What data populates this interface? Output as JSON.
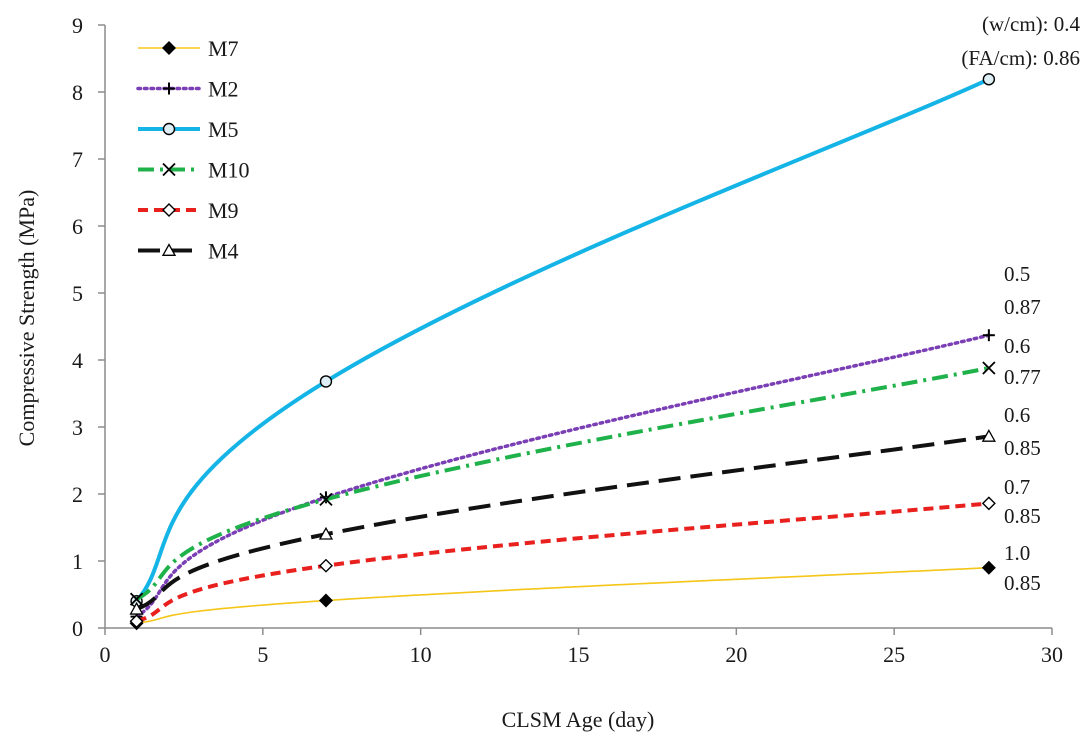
{
  "chart_data": {
    "type": "line",
    "title": "",
    "xlabel": "CLSM Age (day)",
    "ylabel": "Compressive Strength (MPa)",
    "xlim": [
      0,
      30
    ],
    "ylim": [
      0,
      9
    ],
    "xticks": [
      0,
      5,
      10,
      15,
      20,
      25,
      30
    ],
    "yticks": [
      0,
      1,
      2,
      3,
      4,
      5,
      6,
      7,
      8,
      9
    ],
    "grid": false,
    "legend_position": "top-left",
    "series": [
      {
        "name": "M7",
        "x": [
          1,
          7,
          28
        ],
        "y": [
          0.07,
          0.41,
          0.9
        ],
        "color": "#f5c518",
        "dash": "solid",
        "marker": "diamond-filled",
        "width": 1.6,
        "annotation": [
          "1.0",
          "0.85"
        ]
      },
      {
        "name": "M2",
        "x": [
          1,
          7,
          28
        ],
        "y": [
          0.17,
          1.95,
          4.37
        ],
        "color": "#7b3fb5",
        "dash": "dotted",
        "marker": "plus",
        "width": 3.5,
        "annotation": [
          "0.5",
          "0.87"
        ]
      },
      {
        "name": "M5",
        "x": [
          1,
          7,
          28
        ],
        "y": [
          0.4,
          3.68,
          8.19
        ],
        "color": "#14b4e6",
        "dash": "solid",
        "marker": "circle-open",
        "width": 4.0,
        "annotation": [
          "(w/cm): 0.4",
          "(FA/cm): 0.86"
        ]
      },
      {
        "name": "M10",
        "x": [
          1,
          7,
          28
        ],
        "y": [
          0.43,
          1.92,
          3.88
        ],
        "color": "#20b24a",
        "dash": "dashdot",
        "marker": "x",
        "width": 4.0,
        "annotation": [
          "0.6",
          "0.77"
        ]
      },
      {
        "name": "M9",
        "x": [
          1,
          7,
          28
        ],
        "y": [
          0.1,
          0.93,
          1.86
        ],
        "color": "#e8201e",
        "dash": "dash",
        "marker": "diamond-open",
        "width": 4.0,
        "annotation": [
          "0.7",
          "0.85"
        ]
      },
      {
        "name": "M4",
        "x": [
          1,
          7,
          28
        ],
        "y": [
          0.28,
          1.4,
          2.86
        ],
        "color": "#111111",
        "dash": "longdash",
        "marker": "triangle-open",
        "width": 4.0,
        "annotation": [
          "0.6",
          "0.85"
        ]
      }
    ]
  }
}
